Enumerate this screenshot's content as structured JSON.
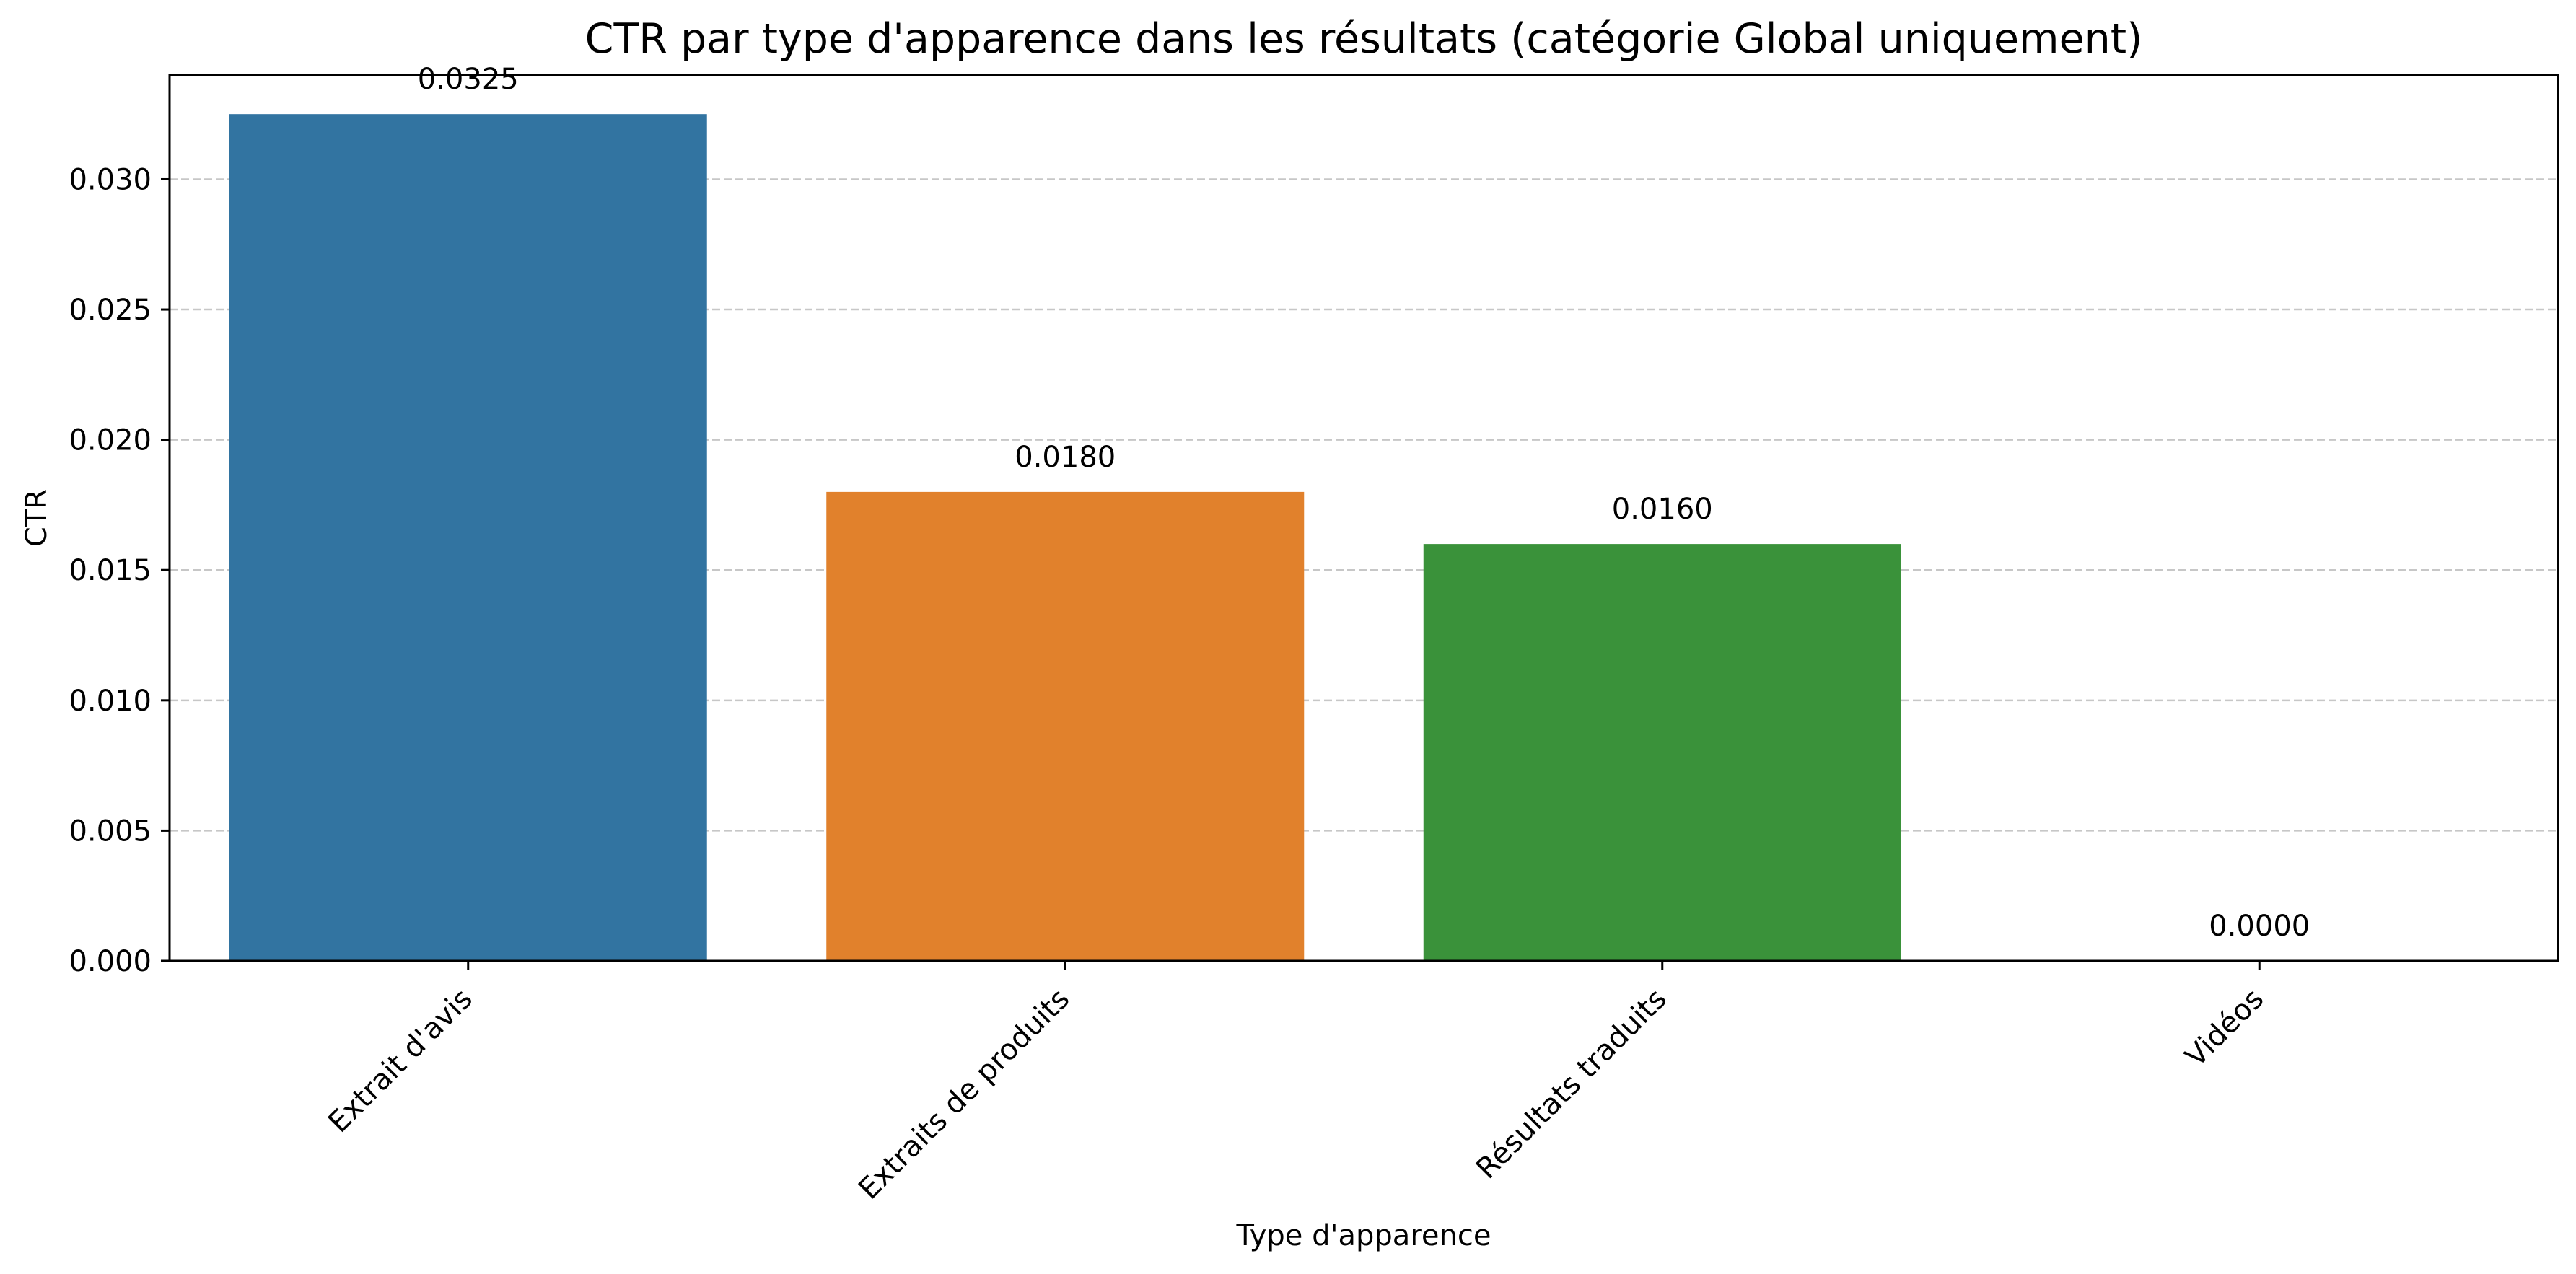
{
  "chart_data": {
    "type": "bar",
    "title": "CTR par type d'apparence dans les résultats (catégorie Global uniquement)",
    "xlabel": "Type d'apparence",
    "ylabel": "CTR",
    "categories": [
      "Extrait d'avis",
      "Extraits de produits",
      "Résultats traduits",
      "Vidéos"
    ],
    "values": [
      0.0325,
      0.018,
      0.016,
      0.0
    ],
    "value_labels": [
      "0.0325",
      "0.0180",
      "0.0160",
      "0.0000"
    ],
    "colors": [
      "#3274a1",
      "#e1812c",
      "#3a923a",
      "#c03d3e"
    ],
    "ylim": [
      0,
      0.034
    ],
    "yticks": [
      0.0,
      0.005,
      0.01,
      0.015,
      0.02,
      0.025,
      0.03
    ],
    "ytick_labels": [
      "0.000",
      "0.005",
      "0.010",
      "0.015",
      "0.020",
      "0.025",
      "0.030"
    ],
    "grid": "y-dashed",
    "legend": "none"
  }
}
